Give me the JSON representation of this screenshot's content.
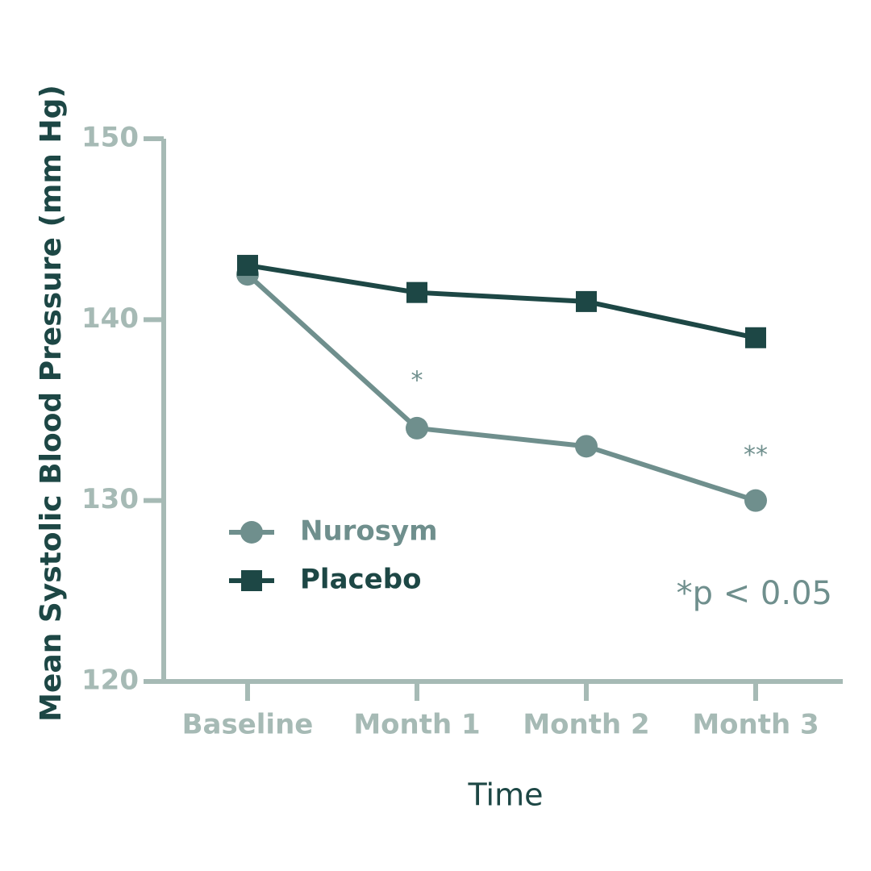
{
  "chart_data": {
    "type": "line",
    "y_label": "Mean Systolic Blood Pressure (mm Hg)",
    "x_label": "Time",
    "categories": [
      "Baseline",
      "Month 1",
      "Month 2",
      "Month 3"
    ],
    "series": [
      {
        "name": "Nurosym",
        "color": "#6f8f8d",
        "marker": "circle",
        "values": [
          142.5,
          134,
          133,
          130
        ]
      },
      {
        "name": "Placebo",
        "color": "#1d4745",
        "marker": "square",
        "values": [
          143,
          141.5,
          141,
          139
        ]
      }
    ],
    "annotations": [
      "*",
      "**",
      "*p < 0.05"
    ],
    "ylim": [
      120,
      150
    ],
    "yticks": [
      120,
      130,
      140,
      150
    ],
    "axis_color": "#a6bab5"
  }
}
